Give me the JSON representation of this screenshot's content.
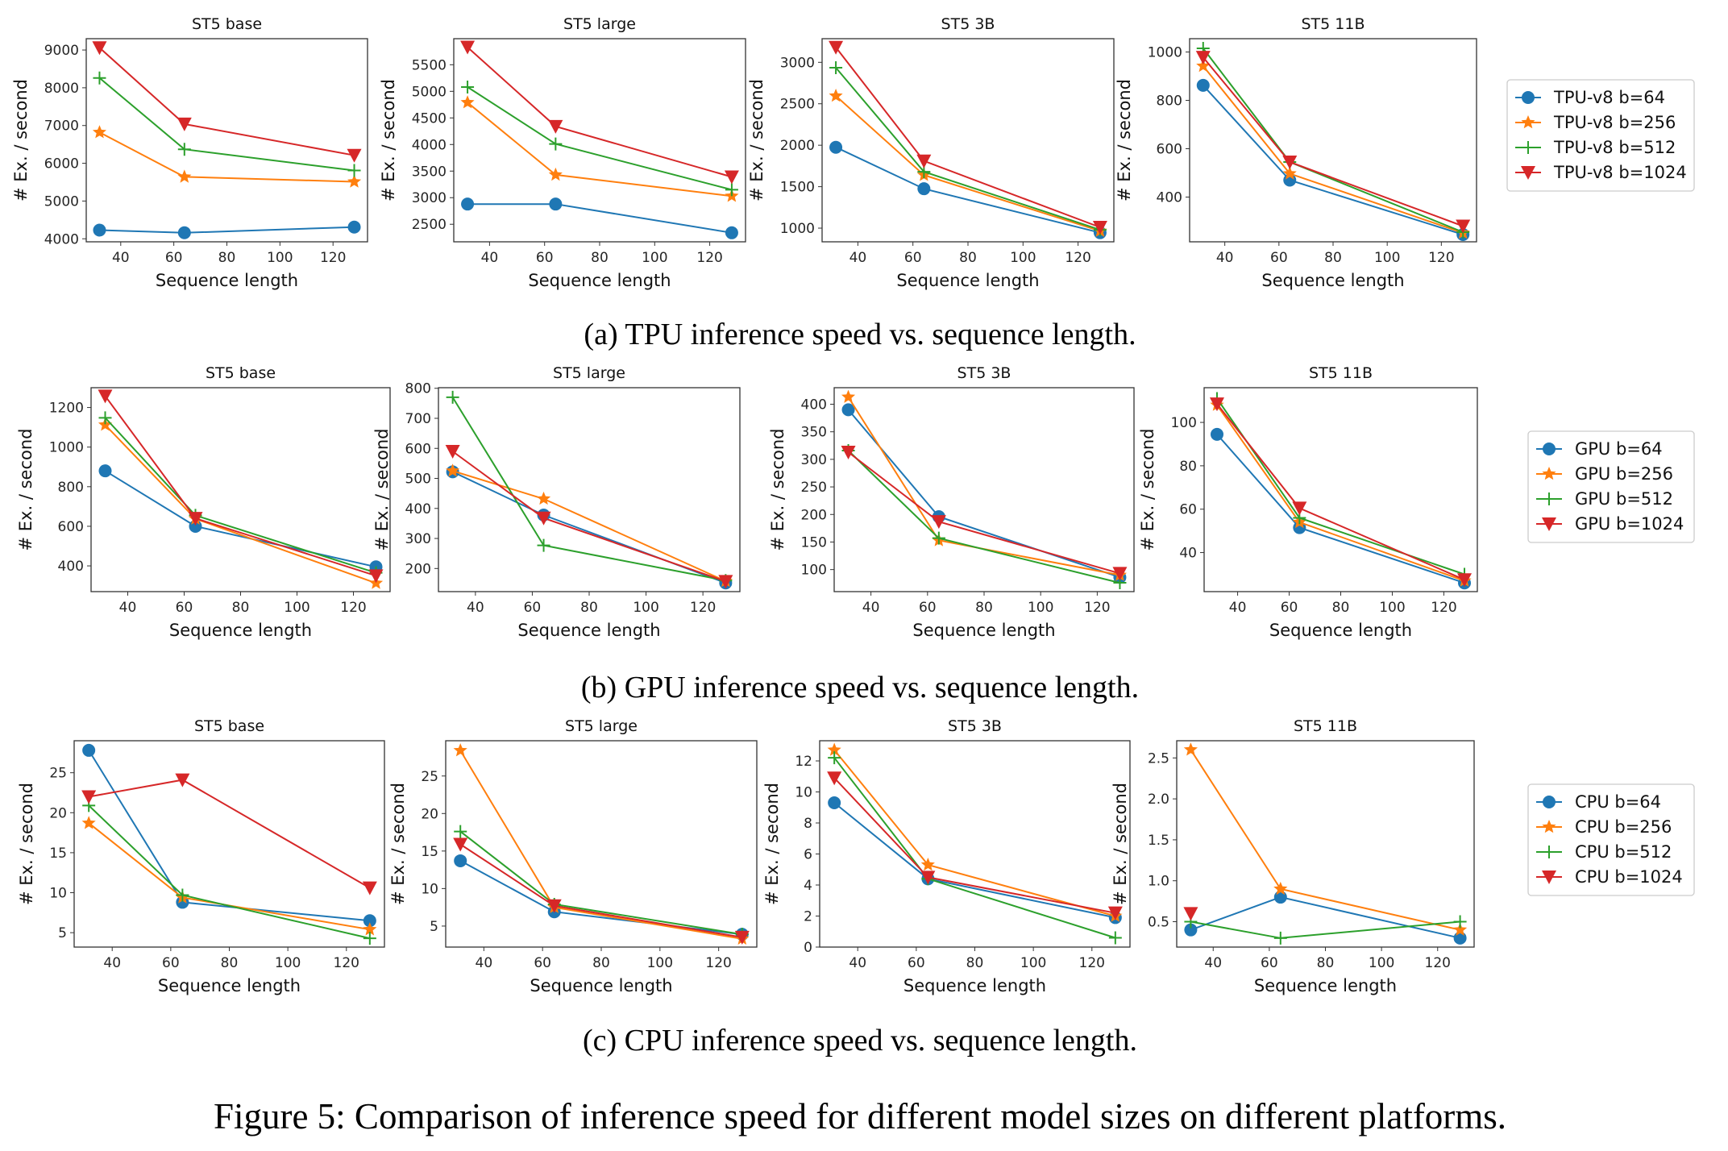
{
  "figure_caption": "Figure 5: Comparison of inference speed for different model sizes on different platforms.",
  "series_colors": [
    "#1f77b4",
    "#ff7f0e",
    "#2ca02c",
    "#d62728"
  ],
  "series_markers": [
    "circle",
    "star",
    "plus",
    "triangle-down"
  ],
  "chart_data": [
    {
      "type": "line",
      "row": "TPU",
      "title": "ST5 base",
      "xlabel": "Sequence length",
      "ylabel": "# Ex. / second",
      "x": [
        32,
        64,
        128
      ],
      "xticks": [
        40,
        60,
        80,
        100,
        120
      ],
      "xlim": [
        27,
        133
      ],
      "yticks": [
        4000,
        5000,
        6000,
        7000,
        8000,
        9000
      ],
      "ylim": [
        3920,
        9300
      ],
      "series": [
        {
          "name": "TPU-v8 b=64",
          "values": [
            4230,
            4160,
            4310
          ]
        },
        {
          "name": "TPU-v8 b=256",
          "values": [
            6820,
            5640,
            5510
          ]
        },
        {
          "name": "TPU-v8 b=512",
          "values": [
            8260,
            6370,
            5810
          ]
        },
        {
          "name": "TPU-v8 b=1024",
          "values": [
            9060,
            7040,
            6210
          ]
        }
      ]
    },
    {
      "type": "line",
      "row": "TPU",
      "title": "ST5 large",
      "xlabel": "Sequence length",
      "ylabel": "# Ex. / second",
      "x": [
        32,
        64,
        128
      ],
      "xticks": [
        40,
        60,
        80,
        100,
        120
      ],
      "xlim": [
        27,
        133
      ],
      "yticks": [
        2500,
        3000,
        3500,
        4000,
        4500,
        5000,
        5500
      ],
      "ylim": [
        2170,
        5990
      ],
      "series": [
        {
          "name": "TPU-v8 b=64",
          "values": [
            2880,
            2880,
            2340
          ]
        },
        {
          "name": "TPU-v8 b=256",
          "values": [
            4790,
            3430,
            3030
          ]
        },
        {
          "name": "TPU-v8 b=512",
          "values": [
            5080,
            4010,
            3150
          ]
        },
        {
          "name": "TPU-v8 b=1024",
          "values": [
            5830,
            4340,
            3390
          ]
        }
      ]
    },
    {
      "type": "line",
      "row": "TPU",
      "title": "ST5 3B",
      "xlabel": "Sequence length",
      "ylabel": "# Ex. / second",
      "x": [
        32,
        64,
        128
      ],
      "xticks": [
        40,
        60,
        80,
        100,
        120
      ],
      "xlim": [
        27,
        133
      ],
      "yticks": [
        1000,
        1500,
        2000,
        2500,
        3000
      ],
      "ylim": [
        835,
        3285
      ],
      "series": [
        {
          "name": "TPU-v8 b=64",
          "values": [
            1975,
            1475,
            945
          ]
        },
        {
          "name": "TPU-v8 b=256",
          "values": [
            2595,
            1640,
            965
          ]
        },
        {
          "name": "TPU-v8 b=512",
          "values": [
            2935,
            1680,
            980
          ]
        },
        {
          "name": "TPU-v8 b=1024",
          "values": [
            3180,
            1810,
            1010
          ]
        }
      ]
    },
    {
      "type": "line",
      "row": "TPU",
      "title": "ST5 11B",
      "xlabel": "Sequence length",
      "ylabel": "# Ex. / second",
      "x": [
        32,
        64,
        128
      ],
      "xticks": [
        40,
        60,
        80,
        100,
        120
      ],
      "xlim": [
        27,
        133
      ],
      "yticks": [
        400,
        600,
        800,
        1000
      ],
      "ylim": [
        215,
        1055
      ],
      "legend": "right",
      "series": [
        {
          "name": "TPU-v8 b=64",
          "values": [
            862,
            470,
            245
          ]
        },
        {
          "name": "TPU-v8 b=256",
          "values": [
            942,
            497,
            252
          ]
        },
        {
          "name": "TPU-v8 b=512",
          "values": [
            1015,
            545,
            255
          ]
        },
        {
          "name": "TPU-v8 b=1024",
          "values": [
            978,
            545,
            280
          ]
        }
      ]
    },
    {
      "type": "line",
      "row": "GPU",
      "title": "ST5 base",
      "xlabel": "Sequence length",
      "ylabel": "# Ex. / second",
      "x": [
        32,
        64,
        128
      ],
      "xticks": [
        40,
        60,
        80,
        100,
        120
      ],
      "xlim": [
        27,
        133
      ],
      "yticks": [
        400,
        600,
        800,
        1000,
        1200
      ],
      "ylim": [
        270,
        1300
      ],
      "series": [
        {
          "name": "GPU b=64",
          "values": [
            880,
            600,
            395
          ]
        },
        {
          "name": "GPU b=256",
          "values": [
            1112,
            638,
            313
          ]
        },
        {
          "name": "GPU b=512",
          "values": [
            1148,
            655,
            365
          ]
        },
        {
          "name": "GPU b=1024",
          "values": [
            1258,
            640,
            350
          ]
        }
      ]
    },
    {
      "type": "line",
      "row": "GPU",
      "title": "ST5 large",
      "xlabel": "Sequence length",
      "ylabel": "# Ex. / second",
      "x": [
        32,
        64,
        128
      ],
      "xticks": [
        40,
        60,
        80,
        100,
        120
      ],
      "xlim": [
        27,
        133
      ],
      "yticks": [
        200,
        300,
        400,
        500,
        600,
        700,
        800
      ],
      "ylim": [
        123,
        802
      ],
      "series": [
        {
          "name": "GPU b=64",
          "values": [
            522,
            378,
            152
          ]
        },
        {
          "name": "GPU b=256",
          "values": [
            525,
            432,
            158
          ]
        },
        {
          "name": "GPU b=512",
          "values": [
            770,
            277,
            160
          ]
        },
        {
          "name": "GPU b=1024",
          "values": [
            590,
            368,
            157
          ]
        }
      ]
    },
    {
      "type": "line",
      "row": "GPU",
      "title": "ST5 3B",
      "xlabel": "Sequence length",
      "ylabel": "# Ex. / second",
      "x": [
        32,
        64,
        128
      ],
      "xticks": [
        40,
        60,
        80,
        100,
        120
      ],
      "xlim": [
        27,
        133
      ],
      "yticks": [
        100,
        150,
        200,
        250,
        300,
        350,
        400
      ],
      "ylim": [
        60,
        430
      ],
      "series": [
        {
          "name": "GPU b=64",
          "values": [
            390,
            196,
            86
          ]
        },
        {
          "name": "GPU b=256",
          "values": [
            413,
            153,
            90
          ]
        },
        {
          "name": "GPU b=512",
          "values": [
            316,
            157,
            76
          ]
        },
        {
          "name": "GPU b=1024",
          "values": [
            313,
            187,
            93
          ]
        }
      ]
    },
    {
      "type": "line",
      "row": "GPU",
      "title": "ST5 11B",
      "xlabel": "Sequence length",
      "ylabel": "# Ex. / second",
      "x": [
        32,
        64,
        128
      ],
      "xticks": [
        40,
        60,
        80,
        100,
        120
      ],
      "xlim": [
        27,
        133
      ],
      "yticks": [
        40,
        60,
        80,
        100
      ],
      "ylim": [
        22,
        116
      ],
      "legend": "right",
      "series": [
        {
          "name": "GPU b=64",
          "values": [
            94.5,
            51.5,
            26
          ]
        },
        {
          "name": "GPU b=256",
          "values": [
            108,
            54,
            27
          ]
        },
        {
          "name": "GPU b=512",
          "values": [
            111,
            56,
            30
          ]
        },
        {
          "name": "GPU b=1024",
          "values": [
            108.5,
            60.5,
            27.5
          ]
        }
      ]
    },
    {
      "type": "line",
      "row": "CPU",
      "title": "ST5 base",
      "xlabel": "Sequence length",
      "ylabel": "# Ex. / second",
      "x": [
        32,
        64,
        128
      ],
      "xticks": [
        40,
        60,
        80,
        100,
        120
      ],
      "xlim": [
        27,
        133
      ],
      "yticks": [
        5,
        10,
        15,
        20,
        25
      ],
      "ylim": [
        3.2,
        29
      ],
      "series": [
        {
          "name": "CPU b=64",
          "values": [
            27.8,
            8.8,
            6.5
          ]
        },
        {
          "name": "CPU b=256",
          "values": [
            18.7,
            9.4,
            5.4
          ]
        },
        {
          "name": "CPU b=512",
          "values": [
            20.9,
            9.7,
            4.3
          ]
        },
        {
          "name": "CPU b=1024",
          "values": [
            22.0,
            24.1,
            10.6
          ]
        }
      ]
    },
    {
      "type": "line",
      "row": "CPU",
      "title": "ST5 large",
      "xlabel": "Sequence length",
      "ylabel": "# Ex. / second",
      "x": [
        32,
        64,
        128
      ],
      "xticks": [
        40,
        60,
        80,
        100,
        120
      ],
      "xlim": [
        27,
        133
      ],
      "yticks": [
        5,
        10,
        15,
        20,
        25
      ],
      "ylim": [
        2.2,
        29.7
      ],
      "series": [
        {
          "name": "CPU b=64",
          "values": [
            13.7,
            6.9,
            3.9
          ]
        },
        {
          "name": "CPU b=256",
          "values": [
            28.4,
            7.5,
            3.3
          ]
        },
        {
          "name": "CPU b=512",
          "values": [
            17.6,
            7.9,
            3.9
          ]
        },
        {
          "name": "CPU b=1024",
          "values": [
            15.9,
            7.7,
            3.5
          ]
        }
      ]
    },
    {
      "type": "line",
      "row": "CPU",
      "title": "ST5 3B",
      "xlabel": "Sequence length",
      "ylabel": "# Ex. / second",
      "x": [
        32,
        64,
        128
      ],
      "xticks": [
        40,
        60,
        80,
        100,
        120
      ],
      "xlim": [
        27,
        133
      ],
      "yticks": [
        0,
        2,
        4,
        6,
        8,
        10,
        12
      ],
      "ylim": [
        0,
        13.3
      ],
      "series": [
        {
          "name": "CPU b=64",
          "values": [
            9.3,
            4.4,
            1.9
          ]
        },
        {
          "name": "CPU b=256",
          "values": [
            12.7,
            5.3,
            2.0
          ]
        },
        {
          "name": "CPU b=512",
          "values": [
            12.2,
            4.4,
            0.6
          ]
        },
        {
          "name": "CPU b=1024",
          "values": [
            10.9,
            4.5,
            2.2
          ]
        }
      ]
    },
    {
      "type": "line",
      "row": "CPU",
      "title": "ST5 11B",
      "xlabel": "Sequence length",
      "ylabel": "# Ex. / second",
      "x": [
        32,
        64,
        128
      ],
      "xticks": [
        40,
        60,
        80,
        100,
        120
      ],
      "xlim": [
        27,
        133
      ],
      "yticks": [
        0.5,
        1.0,
        1.5,
        2.0,
        2.5
      ],
      "yticklabels": [
        "0.5",
        "1.0",
        "1.5",
        "2.0",
        "2.5"
      ],
      "ylim": [
        0.19,
        2.71
      ],
      "legend": "right",
      "series": [
        {
          "name": "CPU b=64",
          "values": [
            0.4,
            0.8,
            0.3
          ]
        },
        {
          "name": "CPU b=256",
          "values": [
            2.6,
            0.9,
            0.4
          ]
        },
        {
          "name": "CPU b=512",
          "values": [
            0.5,
            0.3,
            0.5
          ]
        },
        {
          "name": "CPU b=1024",
          "values": [
            0.6,
            null,
            null
          ]
        }
      ]
    }
  ],
  "subcaptions": [
    "(a) TPU inference speed vs. sequence length.",
    "(b) GPU inference speed vs. sequence length.",
    "(c) CPU inference speed vs. sequence length."
  ]
}
